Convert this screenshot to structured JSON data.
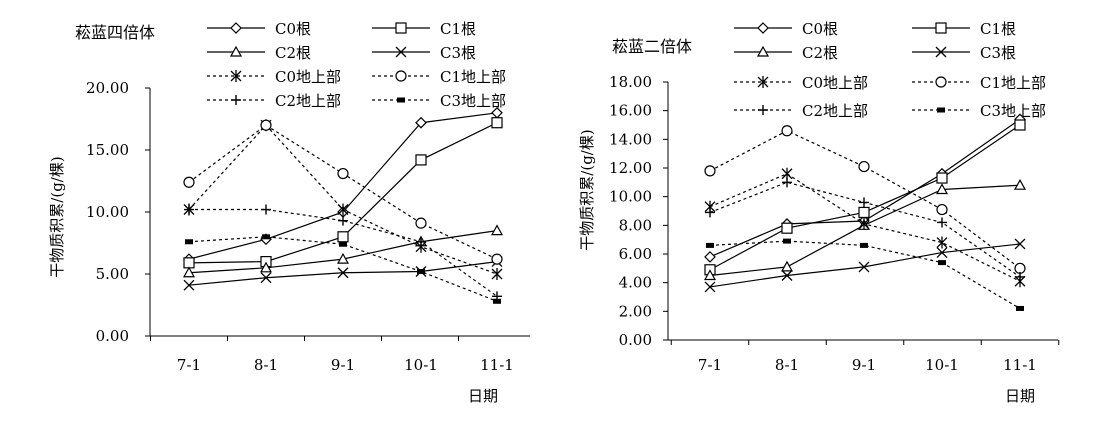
{
  "chart_data": [
    {
      "type": "line",
      "title": "菘蓝四倍体",
      "xlabel": "日期",
      "ylabel": "干物质积累/(g/棵)",
      "categories": [
        "7-1",
        "8-1",
        "9-1",
        "10-1",
        "11-1"
      ],
      "ylim": [
        0,
        20
      ],
      "yticks": [
        "0.00",
        "5.00",
        "10.00",
        "15.00",
        "20.00"
      ],
      "grid": false,
      "legend_position": "top",
      "series": [
        {
          "name": "C0根",
          "marker": "diamond",
          "dash": "solid",
          "values": [
            6.2,
            7.8,
            10.0,
            17.2,
            18.0
          ]
        },
        {
          "name": "C1根",
          "marker": "square",
          "dash": "solid",
          "values": [
            5.9,
            6.0,
            8.0,
            14.2,
            17.2
          ]
        },
        {
          "name": "C2根",
          "marker": "triangle",
          "dash": "solid",
          "values": [
            5.1,
            5.5,
            6.2,
            7.6,
            8.5
          ]
        },
        {
          "name": "C3根",
          "marker": "x",
          "dash": "solid",
          "values": [
            4.1,
            4.7,
            5.1,
            5.2,
            6.0
          ]
        },
        {
          "name": "C0地上部",
          "marker": "asterisk",
          "dash": "dashed",
          "values": [
            10.2,
            17.0,
            10.2,
            7.2,
            5.0
          ]
        },
        {
          "name": "C1地上部",
          "marker": "circle",
          "dash": "dashed",
          "values": [
            12.4,
            17.0,
            13.1,
            9.1,
            6.2
          ]
        },
        {
          "name": "C2地上部",
          "marker": "plus",
          "dash": "dashed",
          "values": [
            10.2,
            10.2,
            9.3,
            7.6,
            3.2
          ]
        },
        {
          "name": "C3地上部",
          "marker": "bar",
          "dash": "dashed",
          "values": [
            7.6,
            8.0,
            7.4,
            5.2,
            2.8
          ]
        }
      ]
    },
    {
      "type": "line",
      "title": "菘蓝二倍体",
      "xlabel": "日期",
      "ylabel": "干物质积累/(g/棵)",
      "categories": [
        "7-1",
        "8-1",
        "9-1",
        "10-1",
        "11-1"
      ],
      "ylim": [
        0,
        18
      ],
      "yticks": [
        "0.00",
        "2.00",
        "4.00",
        "6.00",
        "8.00",
        "10.00",
        "12.00",
        "14.00",
        "16.00",
        "18.00"
      ],
      "grid": false,
      "legend_position": "top",
      "series": [
        {
          "name": "C0根",
          "marker": "diamond",
          "dash": "solid",
          "values": [
            5.8,
            8.1,
            8.3,
            11.6,
            15.4
          ]
        },
        {
          "name": "C1根",
          "marker": "square",
          "dash": "solid",
          "values": [
            4.9,
            7.8,
            8.9,
            11.3,
            15.0
          ]
        },
        {
          "name": "C2根",
          "marker": "triangle",
          "dash": "solid",
          "values": [
            4.5,
            5.1,
            8.0,
            10.5,
            10.8
          ]
        },
        {
          "name": "C3根",
          "marker": "x",
          "dash": "solid",
          "values": [
            3.7,
            4.5,
            5.1,
            6.1,
            6.7
          ]
        },
        {
          "name": "C0地上部",
          "marker": "asterisk",
          "dash": "dashed",
          "values": [
            9.3,
            11.6,
            8.1,
            6.8,
            4.1
          ]
        },
        {
          "name": "C1地上部",
          "marker": "circle",
          "dash": "dashed",
          "values": [
            11.8,
            14.6,
            12.1,
            9.1,
            5.0
          ]
        },
        {
          "name": "C2地上部",
          "marker": "plus",
          "dash": "dashed",
          "values": [
            8.9,
            11.0,
            9.6,
            8.2,
            4.4
          ]
        },
        {
          "name": "C3地上部",
          "marker": "bar",
          "dash": "dashed",
          "values": [
            6.6,
            6.9,
            6.6,
            5.4,
            2.2
          ]
        }
      ]
    }
  ]
}
